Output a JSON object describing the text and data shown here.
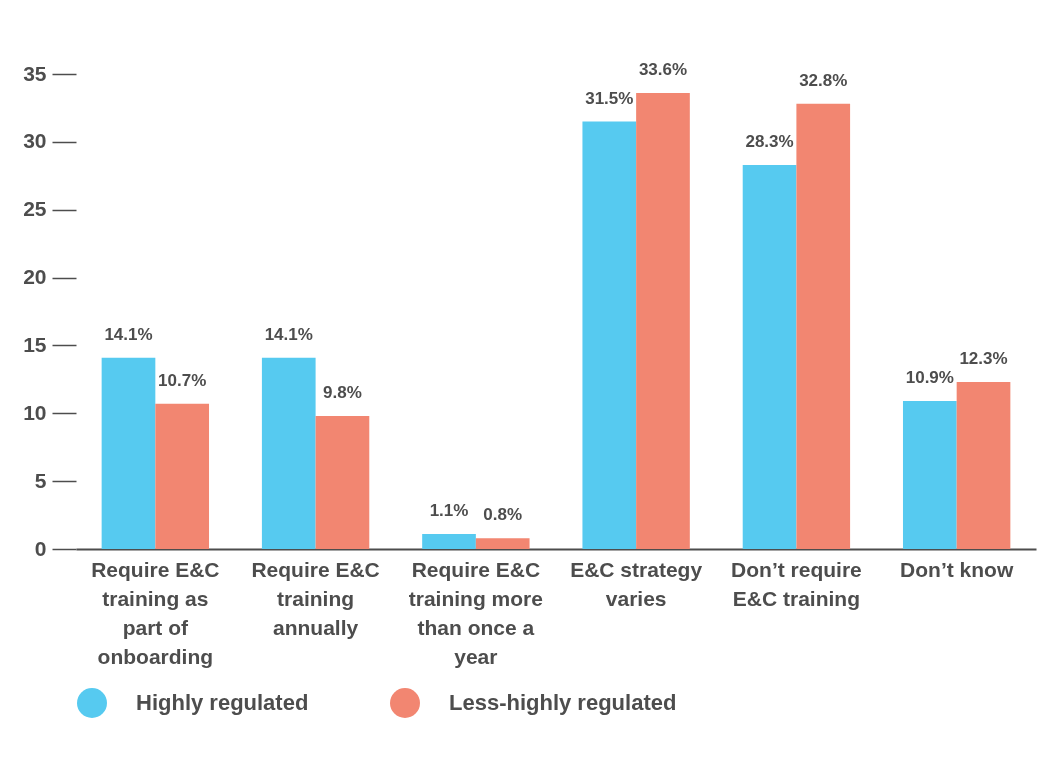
{
  "chart_data": {
    "type": "bar",
    "categories": [
      "Require E&C training as part of onboarding",
      "Require E&C training annually",
      "Require E&C training more than once a year",
      "E&C strategy varies",
      "Don’t require E&C training",
      "Don’t know"
    ],
    "series": [
      {
        "name": "Highly regulated",
        "color": "#56caf0",
        "values": [
          14.1,
          14.1,
          1.1,
          31.5,
          28.3,
          10.9
        ],
        "value_labels": [
          "14.1%",
          "14.1%",
          "1.1%",
          "31.5%",
          "28.3%",
          "10.9%"
        ]
      },
      {
        "name": "Less-highly regulated",
        "color": "#f28671",
        "values": [
          10.7,
          9.8,
          0.8,
          33.6,
          32.8,
          12.3
        ],
        "value_labels": [
          "10.7%",
          "9.8%",
          "0.8%",
          "33.6%",
          "32.8%",
          "12.3%"
        ]
      }
    ],
    "ylim": [
      0,
      35
    ],
    "yticks": [
      0,
      5,
      10,
      15,
      20,
      25,
      30,
      35
    ],
    "legend": "bottom"
  }
}
